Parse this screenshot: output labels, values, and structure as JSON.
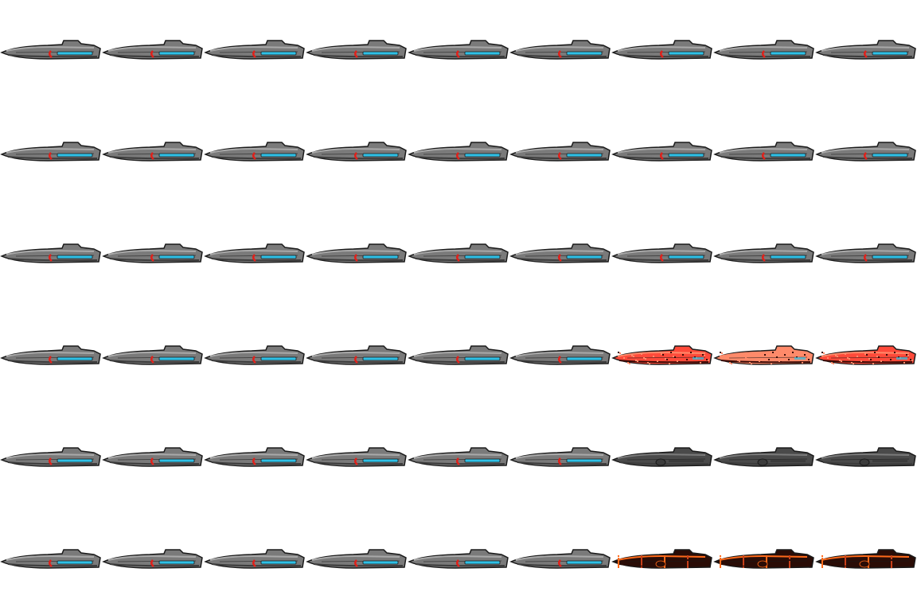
{
  "sheet": {
    "columns": 9,
    "rows": 6,
    "sprite": "ship-sprite",
    "palette": {
      "hull_light": "#a9a9a9",
      "hull_mid": "#7a7a7a",
      "hull_dark": "#3c3c3c",
      "outline": "#1a1a1a",
      "engine_glow": "#2fc0e6",
      "thruster_red": "#e0201a",
      "damage_red": "#ff4a3a",
      "damage_hot": "#ff8a6a",
      "damage_dark": "#3a0a06",
      "burnt_orange": "#ff6a1a",
      "burnt_dark": "#2a0c06",
      "shadow_hull": "#4a4a4a"
    },
    "rows_data": [
      {
        "frames": [
          "normal",
          "normal",
          "normal",
          "normal",
          "normal",
          "normal",
          "normal",
          "normal",
          "normal"
        ]
      },
      {
        "frames": [
          "normal",
          "normal",
          "normal",
          "normal",
          "normal",
          "normal",
          "normal",
          "normal",
          "normal"
        ]
      },
      {
        "frames": [
          "normal",
          "normal",
          "normal",
          "normal",
          "normal",
          "normal",
          "normal",
          "normal",
          "normal"
        ]
      },
      {
        "frames": [
          "normal",
          "normal",
          "normal",
          "normal",
          "normal",
          "normal",
          "damaged-red",
          "damaged-red-bright",
          "damaged-red"
        ]
      },
      {
        "frames": [
          "normal",
          "normal",
          "normal",
          "normal",
          "normal",
          "normal",
          "dark",
          "dark",
          "dark"
        ]
      },
      {
        "frames": [
          "normal",
          "normal",
          "normal",
          "normal",
          "normal",
          "normal",
          "burnt",
          "burnt",
          "burnt"
        ]
      }
    ]
  }
}
